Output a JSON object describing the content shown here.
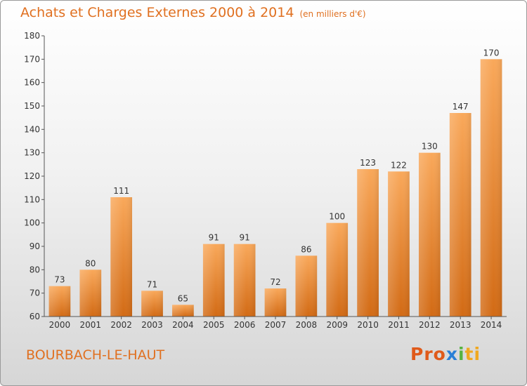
{
  "title": "Achats et Charges Externes 2000 à 2014",
  "unit": "(en milliers d'€)",
  "place": "BOURBACH-LE-HAUT",
  "logo": {
    "p1": "Pro",
    "p2": "x",
    "p3": "i",
    "p4": "ti"
  },
  "colors": {
    "accent": "#e07020",
    "bar_top": "#f9a85a",
    "bar_bottom": "#d26a14"
  },
  "chart_data": {
    "type": "bar",
    "title": "Achats et Charges Externes 2000 à 2014",
    "xlabel": "",
    "ylabel": "",
    "ylim": [
      60,
      180
    ],
    "yticks": [
      60,
      70,
      80,
      90,
      100,
      110,
      120,
      130,
      140,
      150,
      160,
      170,
      180
    ],
    "grid": false,
    "categories": [
      "2000",
      "2001",
      "2002",
      "2003",
      "2004",
      "2005",
      "2006",
      "2007",
      "2008",
      "2009",
      "2010",
      "2011",
      "2012",
      "2013",
      "2014"
    ],
    "values": [
      73,
      80,
      111,
      71,
      65,
      91,
      91,
      72,
      86,
      100,
      123,
      122,
      130,
      147,
      170
    ]
  }
}
